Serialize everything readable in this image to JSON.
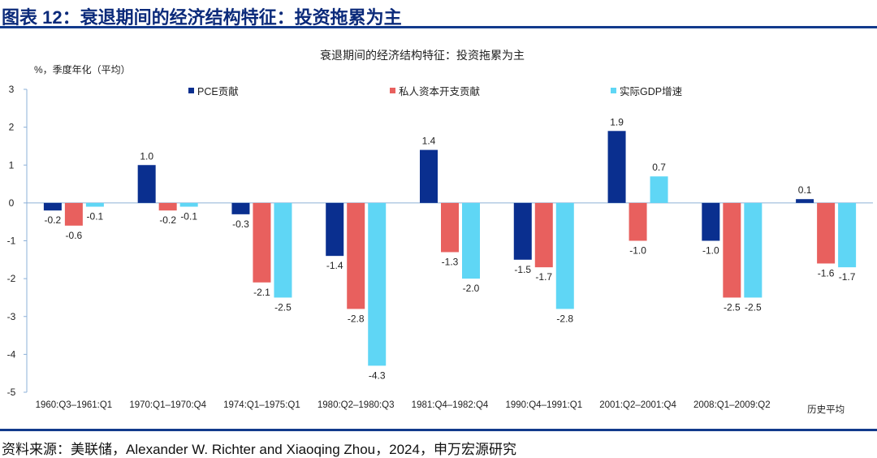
{
  "figure_title": "图表 12：衰退期间的经济结构特征：投资拖累为主",
  "source": "资料来源：美联储，Alexander W. Richter and Xiaoqing Zhou，2024，申万宏源研究",
  "chart_data": {
    "type": "bar",
    "title": "衰退期间的经济结构特征：投资拖累为主",
    "ylabel": "%，季度年化（平均）",
    "xlabel": "",
    "ylim": [
      -5,
      3
    ],
    "yticks": [
      3,
      2,
      1,
      0,
      -1,
      -2,
      -3,
      -4,
      -5
    ],
    "grid": false,
    "legend_position": "top",
    "categories": [
      "1960:Q3–1961:Q1",
      "1970:Q1–1970:Q4",
      "1974:Q1–1975:Q1",
      "1980:Q2–1980:Q3",
      "1981:Q4–1982:Q4",
      "1990:Q4–1991:Q1",
      "2001:Q2–2001:Q4",
      "2008:Q1–2009:Q2",
      "历史平均"
    ],
    "series": [
      {
        "name": "PCE贡献",
        "color": "#0a2f8f",
        "values": [
          -0.2,
          1.0,
          -0.3,
          -1.4,
          1.4,
          -1.5,
          1.9,
          -1.0,
          0.1
        ]
      },
      {
        "name": "私人资本开支贡献",
        "color": "#e8605e",
        "values": [
          -0.6,
          -0.2,
          -2.1,
          -2.8,
          -1.3,
          -1.7,
          -1.0,
          -2.5,
          -1.6
        ]
      },
      {
        "name": "实际GDP增速",
        "color": "#5fd6f5",
        "values": [
          -0.1,
          -0.1,
          -2.5,
          -4.3,
          -2.0,
          -2.8,
          0.7,
          -2.5,
          -1.7
        ]
      }
    ]
  }
}
